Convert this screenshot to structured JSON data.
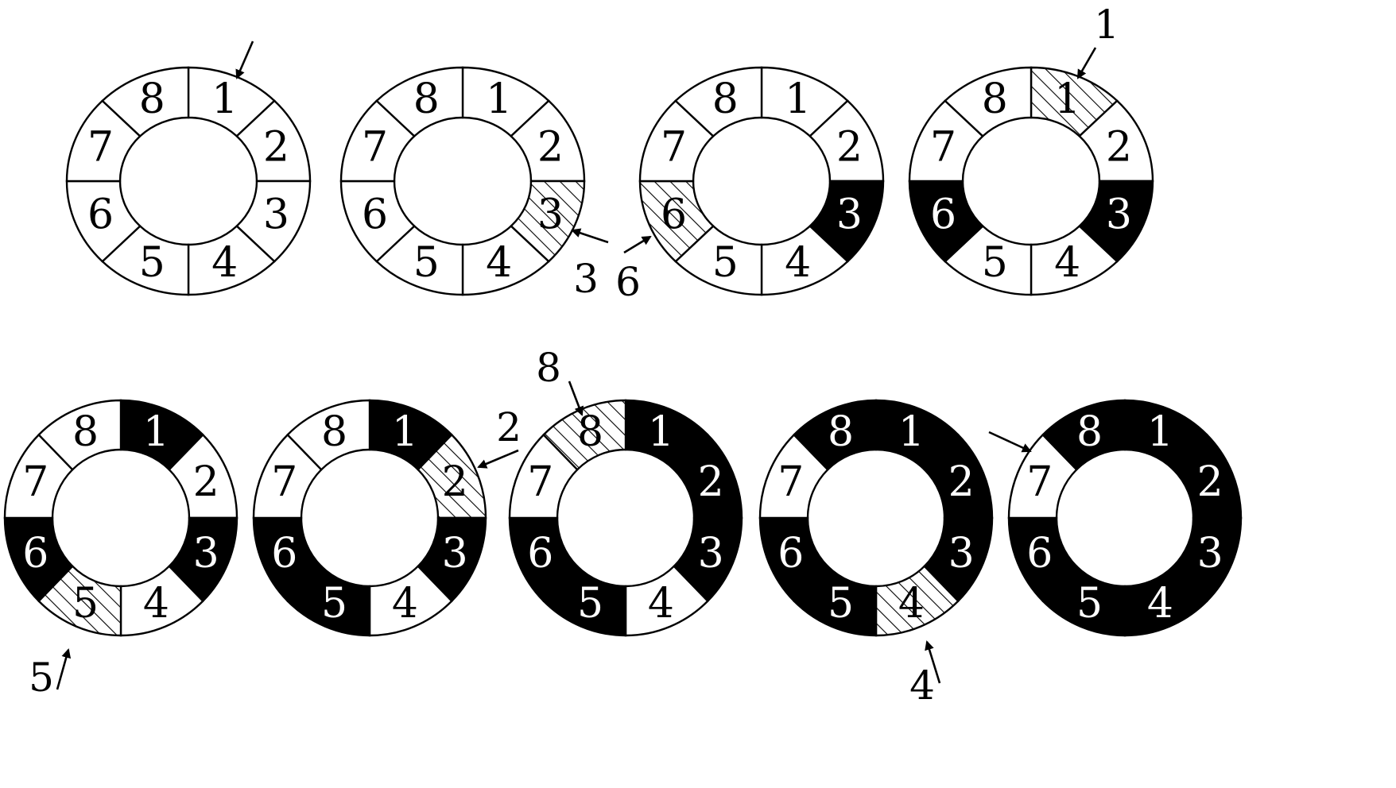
{
  "colors": {
    "ink": "#000000",
    "empty": "#ffffff",
    "filled": "#000000",
    "hatch": "#000000"
  },
  "legend": {
    "states": [
      "empty",
      "hatched",
      "filled"
    ]
  },
  "segment_numbers": [
    "1",
    "2",
    "3",
    "4",
    "5",
    "6",
    "7",
    "8"
  ],
  "rings": [
    {
      "id": "ring-1",
      "states": {
        "1": "empty",
        "2": "empty",
        "3": "empty",
        "4": "empty",
        "5": "empty",
        "6": "empty",
        "7": "empty",
        "8": "empty"
      },
      "callout": {
        "label": "",
        "target": "1"
      }
    },
    {
      "id": "ring-2",
      "states": {
        "1": "empty",
        "2": "empty",
        "3": "hatched",
        "4": "empty",
        "5": "empty",
        "6": "empty",
        "7": "empty",
        "8": "empty"
      },
      "callout": {
        "label": "3",
        "target": "3"
      }
    },
    {
      "id": "ring-3",
      "states": {
        "1": "empty",
        "2": "empty",
        "3": "filled",
        "4": "empty",
        "5": "empty",
        "6": "hatched",
        "7": "empty",
        "8": "empty"
      },
      "callout": {
        "label": "6",
        "target": "6"
      }
    },
    {
      "id": "ring-4",
      "states": {
        "1": "hatched",
        "2": "empty",
        "3": "filled",
        "4": "empty",
        "5": "empty",
        "6": "filled",
        "7": "empty",
        "8": "empty"
      },
      "callout": {
        "label": "1",
        "target": "1"
      }
    },
    {
      "id": "ring-5",
      "states": {
        "1": "filled",
        "2": "empty",
        "3": "filled",
        "4": "empty",
        "5": "hatched",
        "6": "filled",
        "7": "empty",
        "8": "empty"
      },
      "callout": {
        "label": "5",
        "target": "5"
      }
    },
    {
      "id": "ring-6",
      "states": {
        "1": "filled",
        "2": "hatched",
        "3": "filled",
        "4": "empty",
        "5": "filled",
        "6": "filled",
        "7": "empty",
        "8": "empty"
      },
      "callout": {
        "label": "2",
        "target": "2"
      }
    },
    {
      "id": "ring-7",
      "states": {
        "1": "filled",
        "2": "filled",
        "3": "filled",
        "4": "empty",
        "5": "filled",
        "6": "filled",
        "7": "empty",
        "8": "hatched"
      },
      "callout": {
        "label": "8",
        "target": "8"
      }
    },
    {
      "id": "ring-8",
      "states": {
        "1": "filled",
        "2": "filled",
        "3": "filled",
        "4": "hatched",
        "5": "filled",
        "6": "filled",
        "7": "empty",
        "8": "filled"
      },
      "callout": {
        "label": "4",
        "target": "4"
      }
    },
    {
      "id": "ring-9",
      "states": {
        "1": "filled",
        "2": "filled",
        "3": "filled",
        "4": "filled",
        "5": "filled",
        "6": "filled",
        "7": "empty",
        "8": "filled"
      },
      "callout": {
        "label": "",
        "target": "7"
      }
    }
  ]
}
